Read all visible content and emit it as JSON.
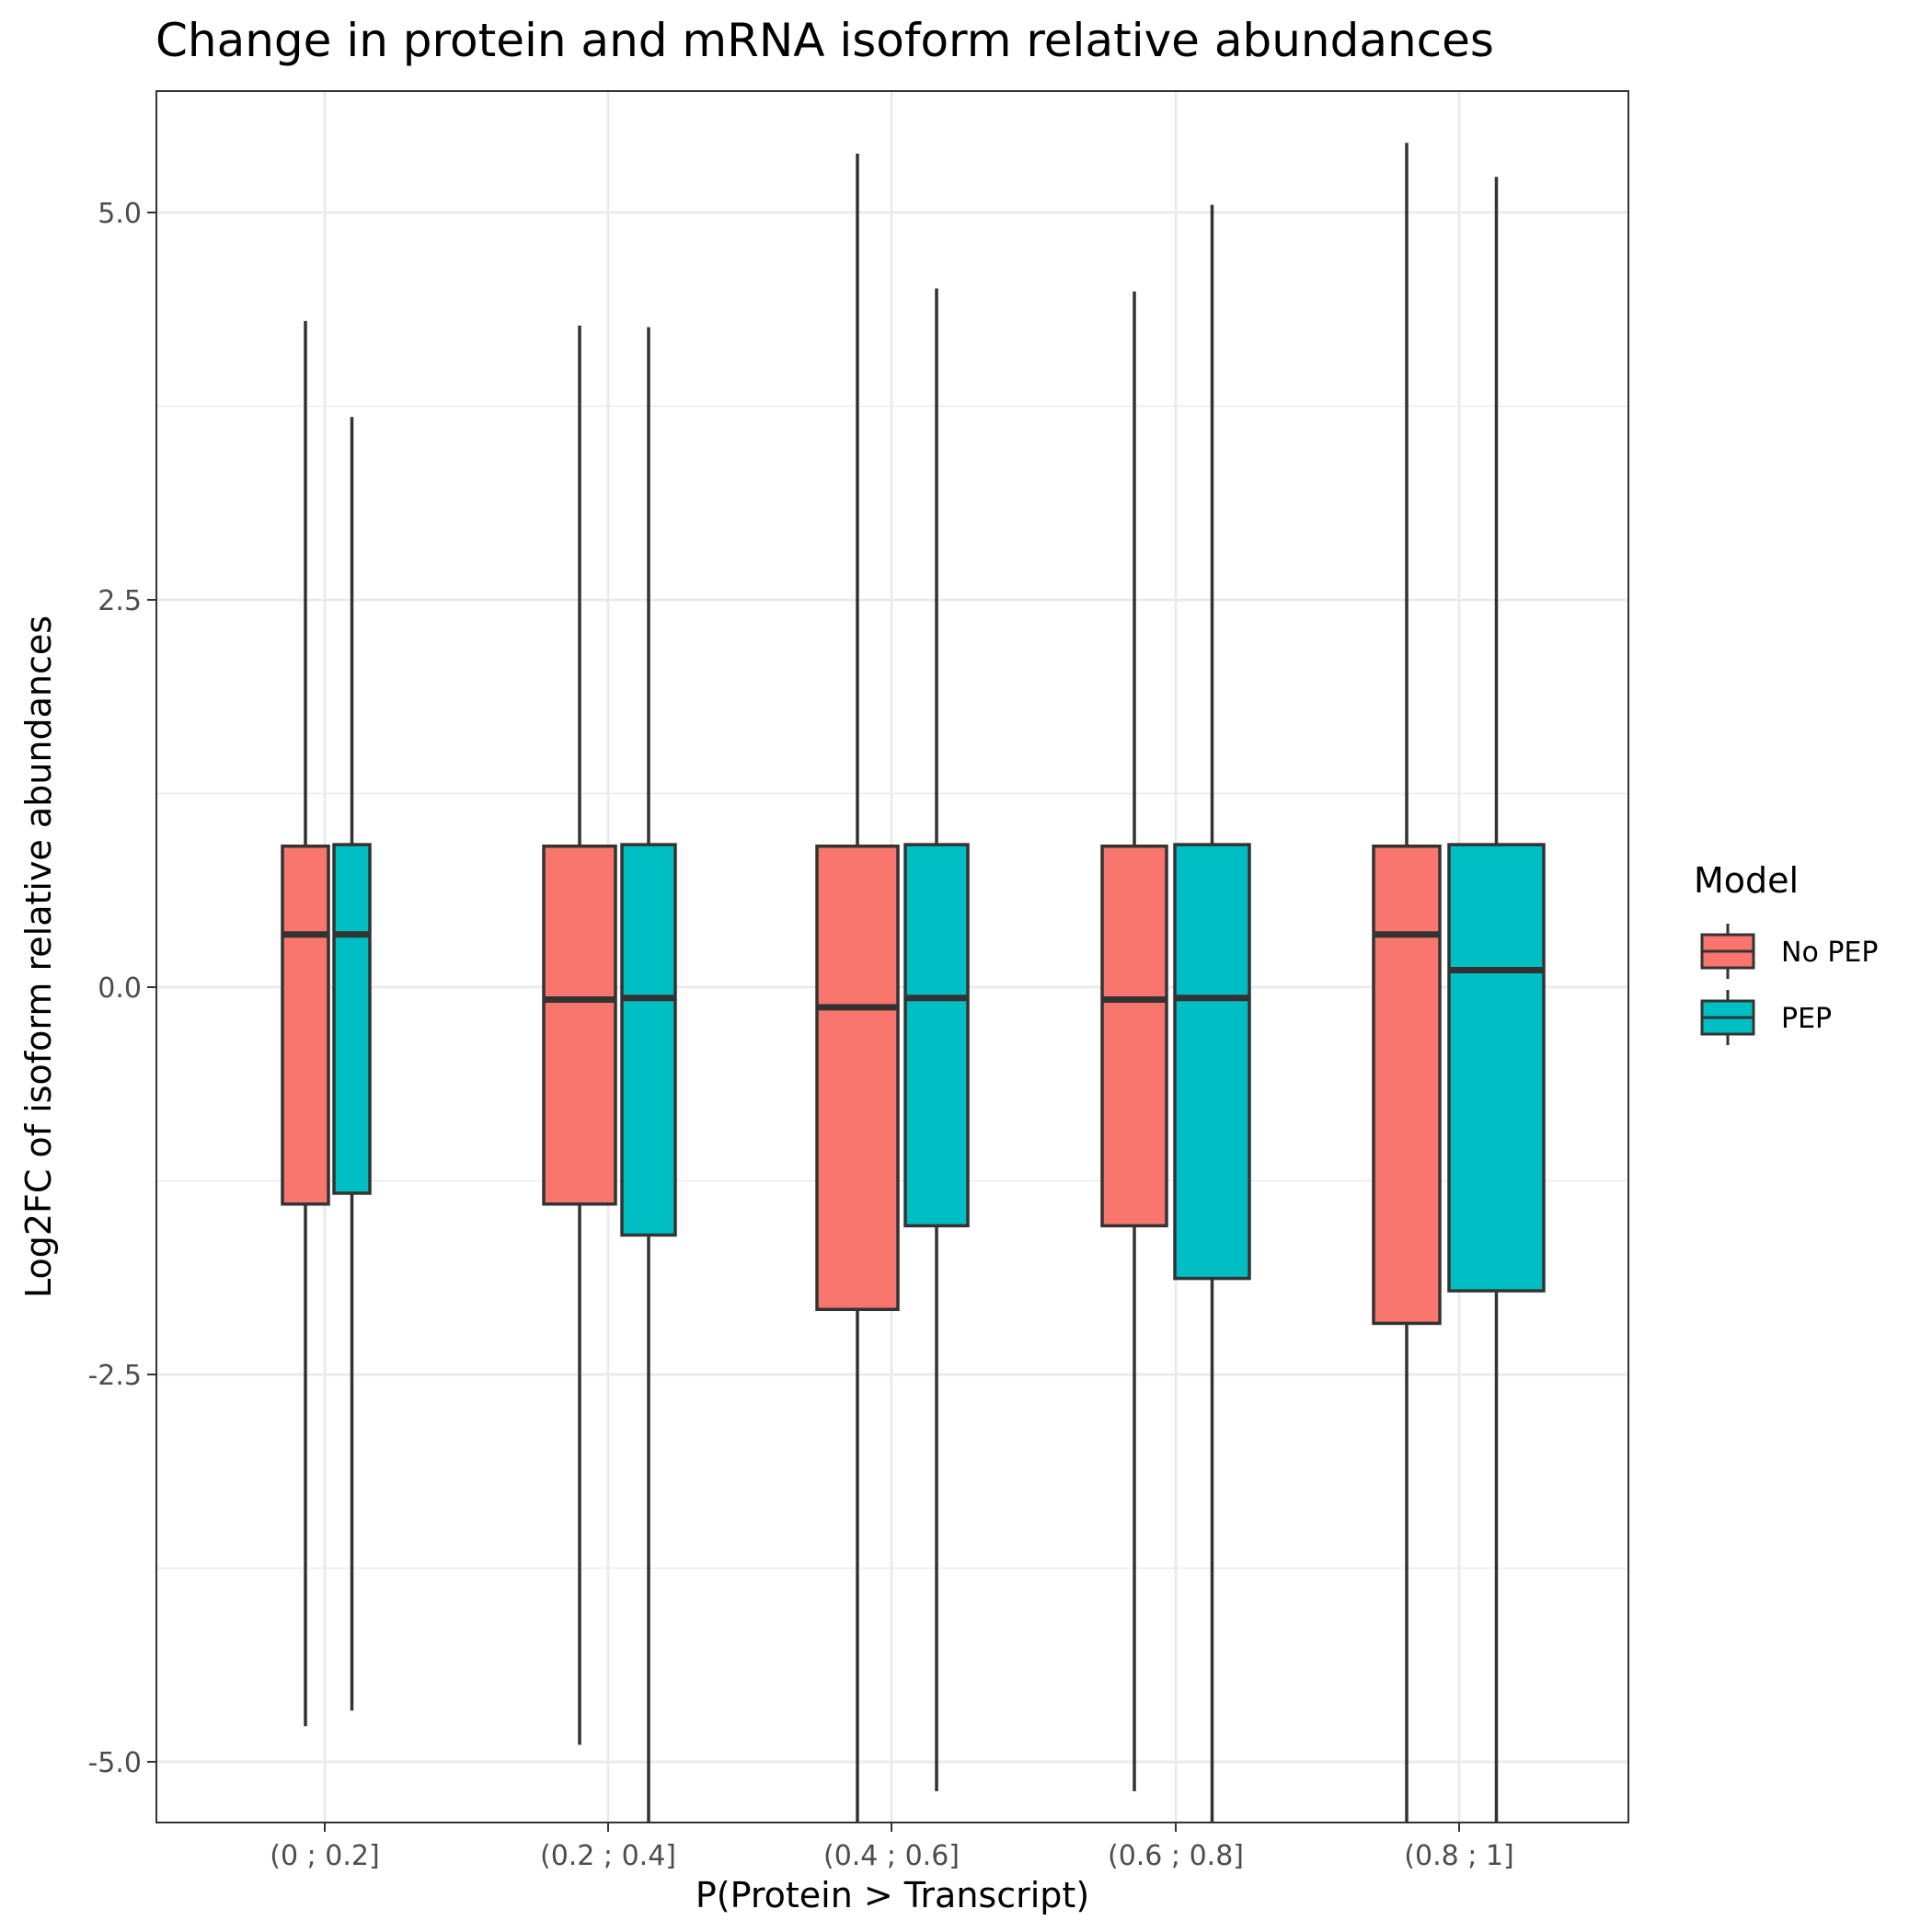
{
  "chart_data": {
    "type": "boxplot",
    "title": "Change in protein and mRNA isoform relative abundances",
    "xlabel": "P(Protein > Transcript)",
    "ylabel": "Log2FC of isoform relative abundances",
    "categories": [
      "(0 ; 0.2]",
      "(0.2 ; 0.4]",
      "(0.4 ; 0.6]",
      "(0.6 ; 0.8]",
      "(0.8 ; 1]"
    ],
    "ylim": [
      -5.4,
      5.8
    ],
    "yticks": [
      -5.0,
      -2.5,
      0.0,
      2.5,
      5.0
    ],
    "ytick_labels": [
      "-5.0",
      "-2.5",
      "0.0",
      "2.5",
      "5.0"
    ],
    "grid": true,
    "legend": {
      "title": "Model",
      "position": "right"
    },
    "series": [
      {
        "name": "No PEP",
        "color": "#F8766D",
        "boxes": [
          {
            "whisker_low": -4.77,
            "q1": -1.4,
            "median": 0.34,
            "q3": 0.91,
            "whisker_high": 4.3
          },
          {
            "whisker_low": -4.89,
            "q1": -1.4,
            "median": -0.08,
            "q3": 0.91,
            "whisker_high": 4.27
          },
          {
            "whisker_low": -5.4,
            "q1": -2.08,
            "median": -0.13,
            "q3": 0.91,
            "whisker_high": 5.38
          },
          {
            "whisker_low": -5.19,
            "q1": -1.54,
            "median": -0.08,
            "q3": 0.91,
            "whisker_high": 4.49
          },
          {
            "whisker_low": -5.4,
            "q1": -2.17,
            "median": 0.34,
            "q3": 0.91,
            "whisker_high": 5.45
          }
        ]
      },
      {
        "name": "PEP",
        "color": "#00BFC4",
        "boxes": [
          {
            "whisker_low": -4.67,
            "q1": -1.33,
            "median": 0.34,
            "q3": 0.92,
            "whisker_high": 3.68
          },
          {
            "whisker_low": -5.4,
            "q1": -1.6,
            "median": -0.07,
            "q3": 0.92,
            "whisker_high": 4.26
          },
          {
            "whisker_low": -5.19,
            "q1": -1.54,
            "median": -0.07,
            "q3": 0.92,
            "whisker_high": 4.51
          },
          {
            "whisker_low": -5.4,
            "q1": -1.88,
            "median": -0.07,
            "q3": 0.92,
            "whisker_high": 5.05
          },
          {
            "whisker_low": -5.4,
            "q1": -1.96,
            "median": 0.11,
            "q3": 0.92,
            "whisker_high": 5.23
          }
        ]
      }
    ]
  }
}
